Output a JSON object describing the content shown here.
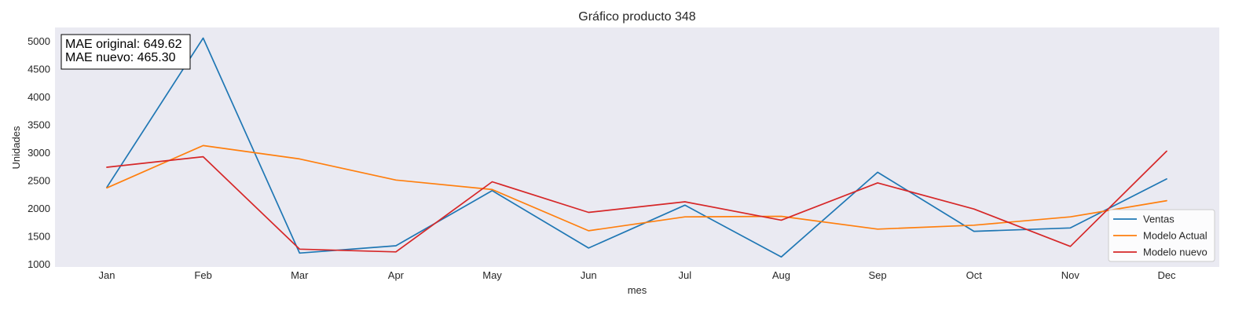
{
  "chart_data": {
    "type": "line",
    "title": "Gráfico producto 348",
    "xlabel": "mes",
    "ylabel": "Unidades",
    "categories": [
      "Jan",
      "Feb",
      "Mar",
      "Apr",
      "May",
      "Jun",
      "Jul",
      "Aug",
      "Sep",
      "Oct",
      "Nov",
      "Dec"
    ],
    "ylim": [
      950,
      5250
    ],
    "yticks": [
      1000,
      1500,
      2000,
      2500,
      3000,
      3500,
      4000,
      4500,
      5000
    ],
    "grid": false,
    "legend_position": "bottom-right",
    "series": [
      {
        "name": "Ventas",
        "color": "#1f77b4",
        "values": [
          2380,
          5060,
          1200,
          1330,
          2320,
          1290,
          2060,
          1130,
          2650,
          1590,
          1650,
          2530
        ]
      },
      {
        "name": "Modelo Actual",
        "color": "#ff7f0e",
        "values": [
          2370,
          3130,
          2890,
          2510,
          2340,
          1600,
          1850,
          1860,
          1630,
          1700,
          1850,
          2140
        ]
      },
      {
        "name": "Modelo nuevo",
        "color": "#d62728",
        "values": [
          2740,
          2930,
          1270,
          1220,
          2480,
          1930,
          2120,
          1790,
          2460,
          1990,
          1320,
          3030
        ]
      }
    ],
    "annotations": [
      "MAE original: 649.62",
      "MAE nuevo: 465.30"
    ]
  }
}
